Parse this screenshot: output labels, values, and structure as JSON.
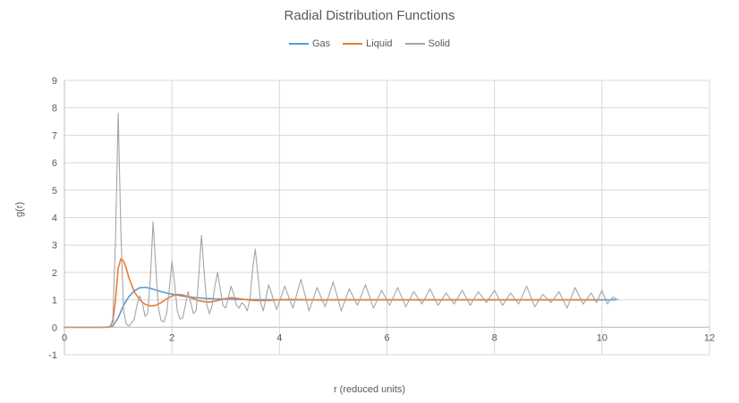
{
  "colors": {
    "gas": "#5B9BD5",
    "liquid": "#ED7D31",
    "solid": "#A5A5A5",
    "gridline": "#D9D9D9",
    "axis_line": "#BFBFBF",
    "text": "#595959"
  },
  "chart_data": {
    "type": "line",
    "title": "Radial Distribution Functions",
    "xlabel": "r (reduced units)",
    "ylabel": "g(r)",
    "xlim": [
      0,
      12
    ],
    "ylim": [
      -1,
      9
    ],
    "x_ticks": [
      0,
      2,
      4,
      6,
      8,
      10,
      12
    ],
    "y_ticks": [
      -1,
      0,
      1,
      2,
      3,
      4,
      5,
      6,
      7,
      8,
      9
    ],
    "grid": "on",
    "legend_position": "top-center",
    "series": [
      {
        "name": "Gas",
        "color_key": "gas",
        "stroke_width": 1.6,
        "points": [
          [
            0,
            0
          ],
          [
            0.7,
            0
          ],
          [
            0.8,
            0.01
          ],
          [
            0.9,
            0.05
          ],
          [
            1.0,
            0.35
          ],
          [
            1.1,
            0.8
          ],
          [
            1.2,
            1.12
          ],
          [
            1.3,
            1.33
          ],
          [
            1.4,
            1.44
          ],
          [
            1.5,
            1.46
          ],
          [
            1.6,
            1.42
          ],
          [
            1.7,
            1.36
          ],
          [
            1.8,
            1.3
          ],
          [
            1.9,
            1.25
          ],
          [
            2.0,
            1.21
          ],
          [
            2.2,
            1.14
          ],
          [
            2.4,
            1.09
          ],
          [
            2.6,
            1.06
          ],
          [
            2.8,
            1.04
          ],
          [
            3.0,
            1.03
          ],
          [
            3.2,
            1.02
          ],
          [
            3.5,
            1.01
          ],
          [
            4.0,
            1.0
          ],
          [
            4.5,
            1.0
          ],
          [
            5.0,
            1.0
          ],
          [
            5.5,
            1.0
          ],
          [
            6.0,
            1.0
          ],
          [
            6.5,
            1.0
          ],
          [
            7.0,
            1.0
          ],
          [
            7.5,
            1.0
          ],
          [
            8.0,
            1.0
          ],
          [
            8.5,
            1.0
          ],
          [
            9.0,
            1.0
          ],
          [
            9.5,
            1.0
          ],
          [
            10.0,
            1.0
          ],
          [
            10.25,
            1.0
          ]
        ]
      },
      {
        "name": "Liquid",
        "color_key": "liquid",
        "stroke_width": 1.6,
        "points": [
          [
            0,
            0
          ],
          [
            0.8,
            0
          ],
          [
            0.85,
            0.03
          ],
          [
            0.9,
            0.2
          ],
          [
            0.95,
            1.0
          ],
          [
            1.0,
            2.15
          ],
          [
            1.05,
            2.5
          ],
          [
            1.1,
            2.42
          ],
          [
            1.15,
            2.15
          ],
          [
            1.2,
            1.8
          ],
          [
            1.3,
            1.3
          ],
          [
            1.4,
            1.0
          ],
          [
            1.5,
            0.84
          ],
          [
            1.6,
            0.78
          ],
          [
            1.7,
            0.8
          ],
          [
            1.8,
            0.9
          ],
          [
            1.9,
            1.04
          ],
          [
            2.0,
            1.14
          ],
          [
            2.1,
            1.2
          ],
          [
            2.2,
            1.18
          ],
          [
            2.3,
            1.12
          ],
          [
            2.4,
            1.04
          ],
          [
            2.5,
            0.97
          ],
          [
            2.6,
            0.93
          ],
          [
            2.7,
            0.92
          ],
          [
            2.8,
            0.95
          ],
          [
            2.9,
            1.0
          ],
          [
            3.0,
            1.05
          ],
          [
            3.1,
            1.08
          ],
          [
            3.2,
            1.06
          ],
          [
            3.3,
            1.03
          ],
          [
            3.4,
            1.0
          ],
          [
            3.5,
            0.98
          ],
          [
            3.6,
            0.97
          ],
          [
            3.8,
            0.98
          ],
          [
            4.0,
            1.0
          ],
          [
            4.2,
            1.02
          ],
          [
            4.4,
            1.01
          ],
          [
            4.6,
            1.0
          ],
          [
            4.8,
            0.99
          ],
          [
            5.0,
            1.0
          ],
          [
            5.5,
            1.0
          ],
          [
            6.0,
            1.0
          ],
          [
            6.5,
            1.0
          ],
          [
            7.0,
            1.0
          ],
          [
            7.5,
            1.0
          ],
          [
            8.0,
            1.0
          ],
          [
            8.5,
            1.0
          ],
          [
            9.0,
            1.0
          ],
          [
            9.5,
            1.0
          ],
          [
            9.9,
            1.0
          ]
        ]
      },
      {
        "name": "Solid",
        "color_key": "solid",
        "stroke_width": 1.1,
        "points": [
          [
            0,
            0
          ],
          [
            0.8,
            0
          ],
          [
            0.85,
            0.02
          ],
          [
            0.9,
            0.3
          ],
          [
            0.95,
            3.2
          ],
          [
            1.0,
            7.8
          ],
          [
            1.05,
            3.5
          ],
          [
            1.1,
            0.6
          ],
          [
            1.15,
            0.12
          ],
          [
            1.2,
            0.05
          ],
          [
            1.3,
            0.3
          ],
          [
            1.35,
            0.8
          ],
          [
            1.4,
            1.15
          ],
          [
            1.45,
            0.9
          ],
          [
            1.5,
            0.4
          ],
          [
            1.55,
            0.5
          ],
          [
            1.6,
            1.8
          ],
          [
            1.65,
            3.85
          ],
          [
            1.7,
            2.2
          ],
          [
            1.75,
            0.7
          ],
          [
            1.8,
            0.25
          ],
          [
            1.85,
            0.2
          ],
          [
            1.9,
            0.5
          ],
          [
            1.95,
            1.4
          ],
          [
            2.0,
            2.4
          ],
          [
            2.05,
            1.6
          ],
          [
            2.1,
            0.6
          ],
          [
            2.15,
            0.3
          ],
          [
            2.2,
            0.35
          ],
          [
            2.25,
            0.8
          ],
          [
            2.3,
            1.3
          ],
          [
            2.35,
            0.9
          ],
          [
            2.4,
            0.5
          ],
          [
            2.45,
            0.6
          ],
          [
            2.5,
            1.9
          ],
          [
            2.55,
            3.35
          ],
          [
            2.6,
            2.0
          ],
          [
            2.65,
            0.8
          ],
          [
            2.7,
            0.5
          ],
          [
            2.75,
            0.8
          ],
          [
            2.8,
            1.5
          ],
          [
            2.85,
            2.0
          ],
          [
            2.9,
            1.4
          ],
          [
            2.95,
            0.8
          ],
          [
            3.0,
            0.7
          ],
          [
            3.05,
            1.1
          ],
          [
            3.1,
            1.5
          ],
          [
            3.15,
            1.2
          ],
          [
            3.2,
            0.8
          ],
          [
            3.25,
            0.7
          ],
          [
            3.3,
            0.9
          ],
          [
            3.35,
            0.8
          ],
          [
            3.4,
            0.6
          ],
          [
            3.45,
            1.0
          ],
          [
            3.5,
            2.1
          ],
          [
            3.55,
            2.85
          ],
          [
            3.6,
            1.9
          ],
          [
            3.65,
            0.9
          ],
          [
            3.7,
            0.6
          ],
          [
            3.8,
            1.55
          ],
          [
            3.95,
            0.65
          ],
          [
            4.1,
            1.5
          ],
          [
            4.25,
            0.7
          ],
          [
            4.4,
            1.75
          ],
          [
            4.55,
            0.6
          ],
          [
            4.7,
            1.45
          ],
          [
            4.85,
            0.75
          ],
          [
            5.0,
            1.65
          ],
          [
            5.15,
            0.6
          ],
          [
            5.3,
            1.4
          ],
          [
            5.45,
            0.8
          ],
          [
            5.6,
            1.55
          ],
          [
            5.75,
            0.7
          ],
          [
            5.9,
            1.35
          ],
          [
            6.05,
            0.8
          ],
          [
            6.2,
            1.45
          ],
          [
            6.35,
            0.75
          ],
          [
            6.5,
            1.3
          ],
          [
            6.65,
            0.85
          ],
          [
            6.8,
            1.4
          ],
          [
            6.95,
            0.8
          ],
          [
            7.1,
            1.25
          ],
          [
            7.25,
            0.85
          ],
          [
            7.4,
            1.35
          ],
          [
            7.55,
            0.8
          ],
          [
            7.7,
            1.3
          ],
          [
            7.85,
            0.9
          ],
          [
            8.0,
            1.35
          ],
          [
            8.15,
            0.8
          ],
          [
            8.3,
            1.25
          ],
          [
            8.45,
            0.85
          ],
          [
            8.6,
            1.5
          ],
          [
            8.75,
            0.75
          ],
          [
            8.9,
            1.2
          ],
          [
            9.05,
            0.9
          ],
          [
            9.2,
            1.3
          ],
          [
            9.35,
            0.7
          ],
          [
            9.5,
            1.45
          ],
          [
            9.65,
            0.85
          ],
          [
            9.8,
            1.25
          ],
          [
            9.9,
            0.9
          ],
          [
            10.0,
            1.35
          ],
          [
            10.1,
            0.85
          ],
          [
            10.2,
            1.1
          ],
          [
            10.3,
            1.0
          ]
        ]
      }
    ]
  }
}
